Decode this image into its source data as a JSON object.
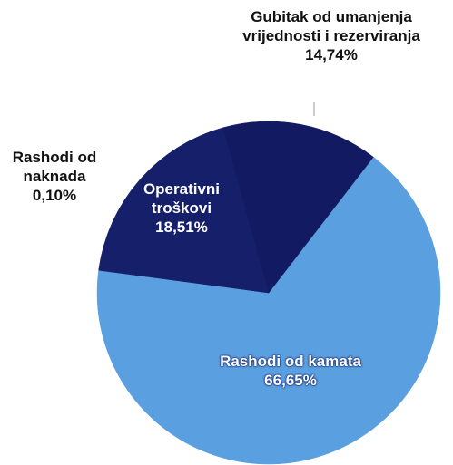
{
  "chart_data": {
    "type": "pie",
    "categories": [
      "Rashodi od kamata",
      "Rashodi od naknada",
      "Operativni troškovi",
      "Gubitak od umanjenja vrijednosti i rezerviranja"
    ],
    "values": [
      66.65,
      0.1,
      18.51,
      14.74
    ],
    "value_labels": [
      "66,65%",
      "0,10%",
      "18,51%",
      "14,74%"
    ],
    "colors": [
      "#5a9fdf",
      "#16206a",
      "#16206a",
      "#121b62"
    ]
  }
}
